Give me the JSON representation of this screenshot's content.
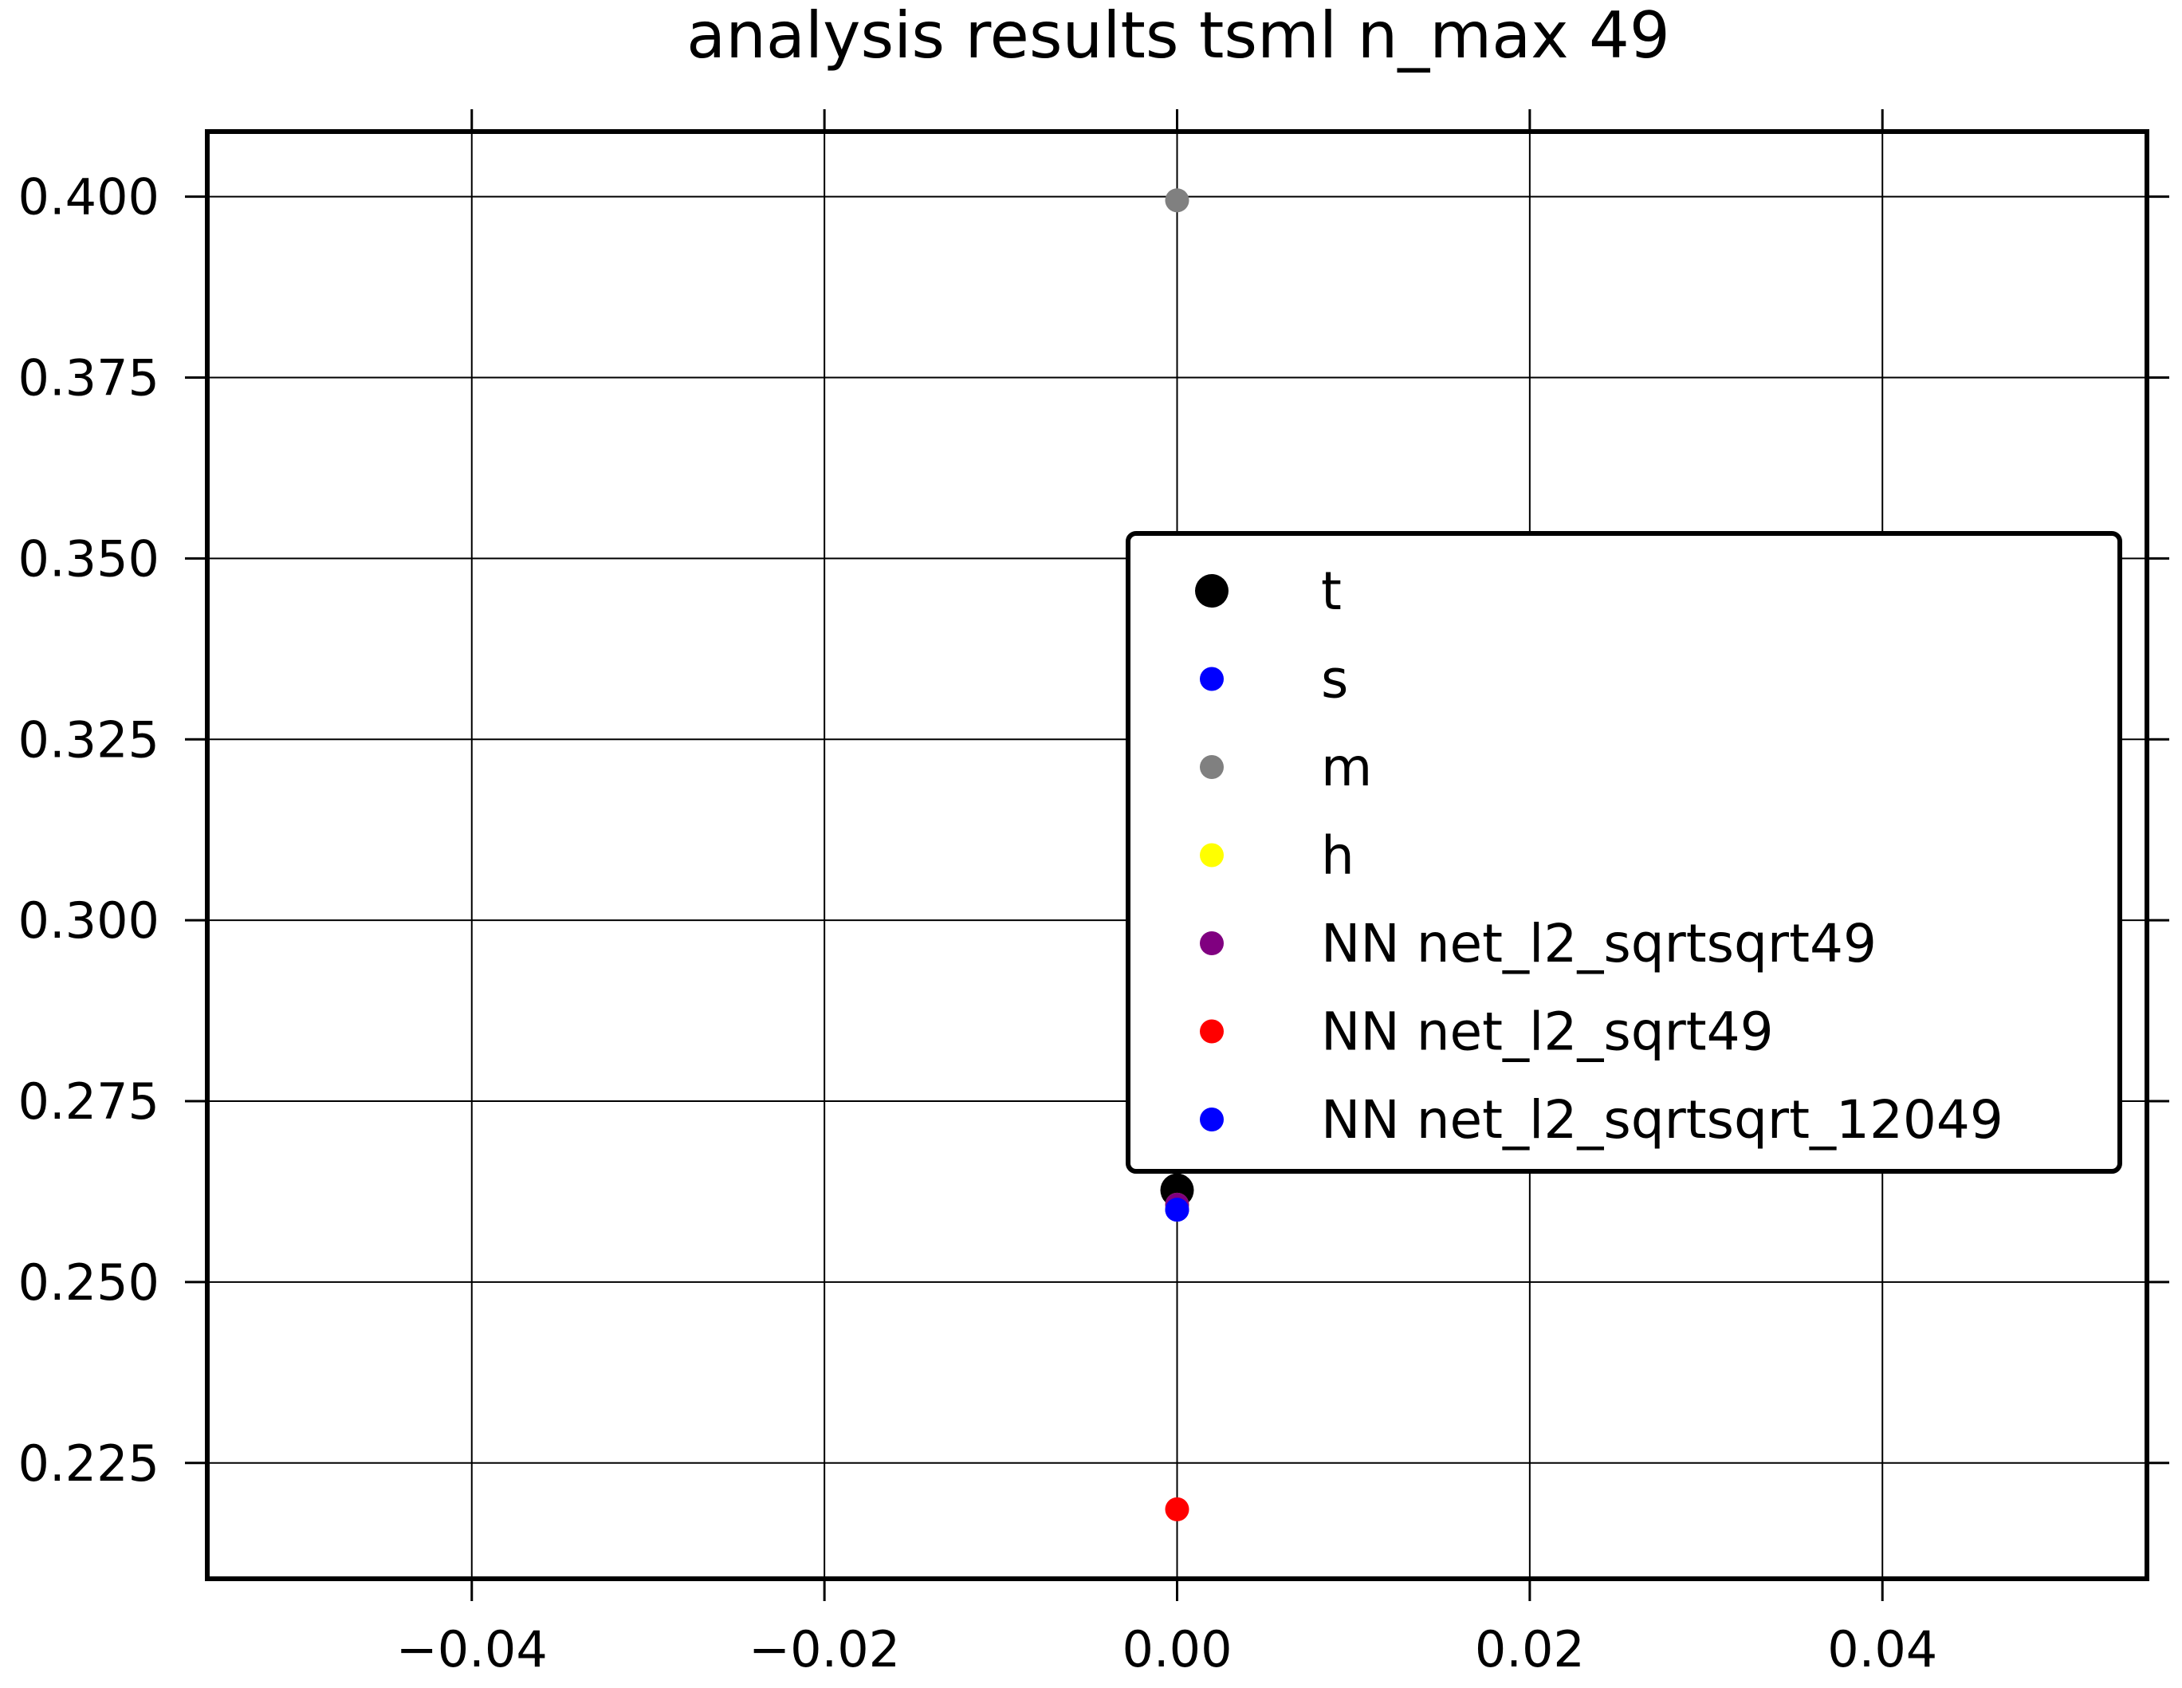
{
  "chart_data": {
    "type": "scatter",
    "title": "analysis results tsml  n_max 49",
    "xlabel": "",
    "ylabel": "",
    "xlim": [
      -0.055,
      0.055
    ],
    "ylim": [
      0.209,
      0.409
    ],
    "x_ticks": [
      -0.04,
      -0.02,
      0.0,
      0.02,
      0.04
    ],
    "x_tick_labels": [
      "−0.04",
      "−0.02",
      "0.00",
      "0.02",
      "0.04"
    ],
    "y_ticks": [
      0.225,
      0.25,
      0.275,
      0.3,
      0.325,
      0.35,
      0.375,
      0.4
    ],
    "y_tick_labels": [
      "0.225",
      "0.250",
      "0.275",
      "0.300",
      "0.325",
      "0.350",
      "0.375",
      "0.400"
    ],
    "grid": true,
    "legend_position": "right",
    "series": [
      {
        "name": "t",
        "color": "#000000",
        "marker_scale": "large",
        "points": [
          {
            "x": 0.0,
            "y": 0.2627
          }
        ]
      },
      {
        "name": "s",
        "color": "#0000ff",
        "marker_scale": "normal",
        "points": [
          {
            "x": 0.0,
            "y": 0.26
          }
        ]
      },
      {
        "name": "m",
        "color": "#808080",
        "marker_scale": "normal",
        "points": [
          {
            "x": 0.0,
            "y": 0.3995
          }
        ]
      },
      {
        "name": "h",
        "color": "#ffff00",
        "marker_scale": "normal",
        "points": [
          {
            "x": 0.0,
            "y": 0.2607
          }
        ]
      },
      {
        "name": "NN net_l2_sqrtsqrt49",
        "color": "#800080",
        "marker_scale": "normal",
        "points": [
          {
            "x": 0.0,
            "y": 0.2607
          }
        ]
      },
      {
        "name": "NN net_l2_sqrt49",
        "color": "#ff0000",
        "marker_scale": "normal",
        "points": [
          {
            "x": 0.0,
            "y": 0.2186
          }
        ]
      },
      {
        "name": "NN net_l2_sqrtsqrt_12049",
        "color": "#0000ff",
        "marker_scale": "normal",
        "points": [
          {
            "x": 0.0,
            "y": 0.26
          }
        ]
      }
    ]
  }
}
